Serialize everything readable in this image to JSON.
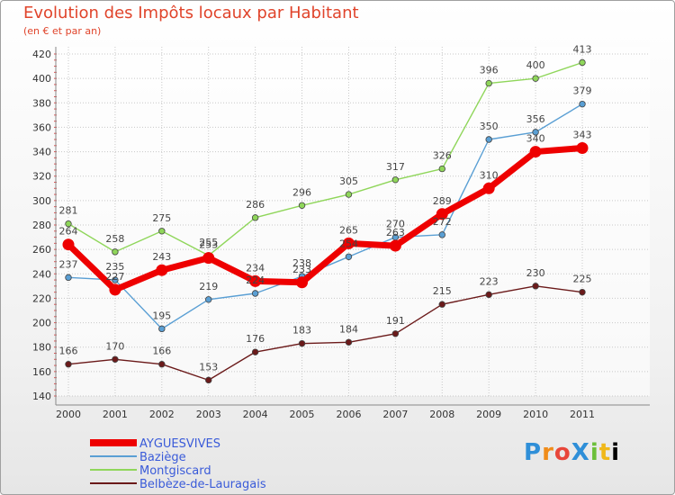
{
  "title": "Evolution des Impôts locaux par Habitant",
  "subtitle": "(en € et par an)",
  "logo": "ProXiti",
  "chart_data": {
    "type": "line",
    "title": "Evolution des Impôts locaux par Habitant",
    "subtitle": "(en € et par an)",
    "xlabel": "",
    "ylabel": "",
    "x": [
      "2000",
      "2001",
      "2002",
      "2003",
      "2004",
      "2005",
      "2006",
      "2007",
      "2008",
      "2009",
      "2010",
      "2011"
    ],
    "ylim": [
      140,
      420
    ],
    "yticks": [
      140,
      160,
      180,
      200,
      220,
      240,
      260,
      280,
      300,
      320,
      340,
      360,
      380,
      400,
      420
    ],
    "grid": true,
    "legend_position": "bottom-left",
    "series": [
      {
        "name": "AYGUESVIVES",
        "color": "#ee0000",
        "values": [
          264,
          227,
          243,
          253,
          234,
          233,
          265,
          263,
          289,
          310,
          340,
          343
        ]
      },
      {
        "name": "Baziège",
        "color": "#5a9fd4",
        "values": [
          237,
          235,
          195,
          219,
          224,
          238,
          254,
          270,
          272,
          350,
          356,
          379
        ]
      },
      {
        "name": "Montgiscard",
        "color": "#8fd65a",
        "values": [
          281,
          258,
          275,
          255,
          286,
          296,
          305,
          317,
          326,
          396,
          400,
          413
        ]
      },
      {
        "name": "Belbèze-de-Lauragais",
        "color": "#6b1a1a",
        "values": [
          166,
          170,
          166,
          153,
          176,
          183,
          184,
          191,
          215,
          223,
          230,
          225
        ]
      }
    ]
  }
}
